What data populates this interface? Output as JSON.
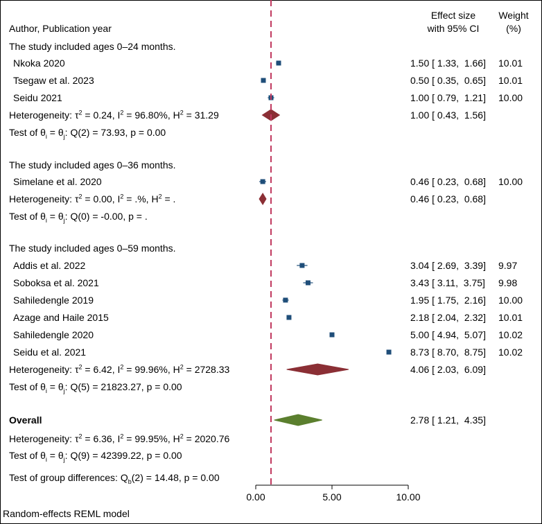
{
  "header": {
    "author_col": "Author, Publication year",
    "effect_line1": "Effect size",
    "effect_line2": "with 95% CI",
    "weight_line1": "Weight",
    "weight_line2": "(%)"
  },
  "footer": "Random-effects REML model",
  "colors": {
    "study_marker": "#1f4e79",
    "subgroup_diamond": "#8b2f35",
    "overall_diamond": "#5b7f2e",
    "ref_line": "#c0395f"
  },
  "chart_data": {
    "type": "forest",
    "axis": {
      "min": 0,
      "max": 10,
      "ticks": [
        0,
        5,
        10
      ],
      "tick_labels": [
        "0.00",
        "5.00",
        "10.00"
      ]
    },
    "reference_line": 1,
    "groups": [
      {
        "label": "The study included ages 0–24 months.",
        "studies": [
          {
            "name": "Nkoka 2020",
            "es": 1.5,
            "lo": 1.33,
            "hi": 1.66,
            "ci_text": "1.50 [ 1.33,  1.66]",
            "weight": "10.01"
          },
          {
            "name": "Tsegaw et al. 2023",
            "es": 0.5,
            "lo": 0.35,
            "hi": 0.65,
            "ci_text": "0.50 [ 0.35,  0.65]",
            "weight": "10.01"
          },
          {
            "name": "Seidu 2021",
            "es": 1.0,
            "lo": 0.79,
            "hi": 1.21,
            "ci_text": "1.00 [ 0.79,  1.21]",
            "weight": "10.00"
          }
        ],
        "pooled": {
          "es": 1.0,
          "lo": 0.43,
          "hi": 1.56,
          "ci_text": "1.00 [ 0.43,  1.56]"
        },
        "heterogeneity": {
          "prefix": "Heterogeneity: τ",
          "tau2": "= 0.24, I",
          "i2": "= 96.80%, H",
          "h2": "= 31.29"
        },
        "test": {
          "prefix": "Test of θ",
          "mid": " = θ",
          "suffix": ": Q(2) = 73.93, p = 0.00"
        }
      },
      {
        "label": "The study included ages 0–36 months.",
        "studies": [
          {
            "name": "Simelane et al. 2020",
            "es": 0.46,
            "lo": 0.23,
            "hi": 0.68,
            "ci_text": "0.46 [ 0.23,  0.68]",
            "weight": "10.00"
          }
        ],
        "pooled": {
          "es": 0.46,
          "lo": 0.23,
          "hi": 0.68,
          "ci_text": "0.46 [ 0.23,  0.68]"
        },
        "heterogeneity": {
          "prefix": "Heterogeneity: τ",
          "tau2": "= 0.00, I",
          "i2": "= .%, H",
          "h2": "= ."
        },
        "test": {
          "prefix": "Test of θ",
          "mid": " = θ",
          "suffix": ": Q(0) = -0.00, p = ."
        }
      },
      {
        "label": "The study included ages 0–59 months.",
        "studies": [
          {
            "name": "Addis et al. 2022",
            "es": 3.04,
            "lo": 2.69,
            "hi": 3.39,
            "ci_text": "3.04 [ 2.69,  3.39]",
            "weight": "9.97"
          },
          {
            "name": "Soboksa et al. 2021",
            "es": 3.43,
            "lo": 3.11,
            "hi": 3.75,
            "ci_text": "3.43 [ 3.11,  3.75]",
            "weight": "9.98"
          },
          {
            "name": "Sahiledengle 2019",
            "es": 1.95,
            "lo": 1.75,
            "hi": 2.16,
            "ci_text": "1.95 [ 1.75,  2.16]",
            "weight": "10.00"
          },
          {
            "name": "Azage and Haile 2015",
            "es": 2.18,
            "lo": 2.04,
            "hi": 2.32,
            "ci_text": "2.18 [ 2.04,  2.32]",
            "weight": "10.01"
          },
          {
            "name": "Sahiledengle 2020",
            "es": 5.0,
            "lo": 4.94,
            "hi": 5.07,
            "ci_text": "5.00 [ 4.94,  5.07]",
            "weight": "10.02"
          },
          {
            "name": "Seidu et al. 2021",
            "es": 8.73,
            "lo": 8.7,
            "hi": 8.75,
            "ci_text": "8.73 [ 8.70,  8.75]",
            "weight": "10.02"
          }
        ],
        "pooled": {
          "es": 4.06,
          "lo": 2.03,
          "hi": 6.09,
          "ci_text": "4.06 [ 2.03,  6.09]"
        },
        "heterogeneity": {
          "prefix": "Heterogeneity: τ",
          "tau2": "= 6.42, I",
          "i2": "= 99.96%, H",
          "h2": "= 2728.33"
        },
        "test": {
          "prefix": "Test of θ",
          "mid": " = θ",
          "suffix": ": Q(5) = 21823.27, p = 0.00"
        }
      }
    ],
    "overall": {
      "label": "Overall",
      "es": 2.78,
      "lo": 1.21,
      "hi": 4.35,
      "ci_text": "2.78 [ 1.21,  4.35]",
      "heterogeneity": {
        "prefix": "Heterogeneity: τ",
        "tau2": "= 6.36, I",
        "i2": "= 99.95%, H",
        "h2": "= 2020.76"
      },
      "test": {
        "prefix": "Test of θ",
        "mid": " = θ",
        "suffix": ": Q(9) = 42399.22, p = 0.00"
      }
    },
    "group_differences": {
      "prefix": "Test of group differences: Q",
      "sub": "b",
      "suffix": "(2) = 14.48, p = 0.00"
    }
  }
}
